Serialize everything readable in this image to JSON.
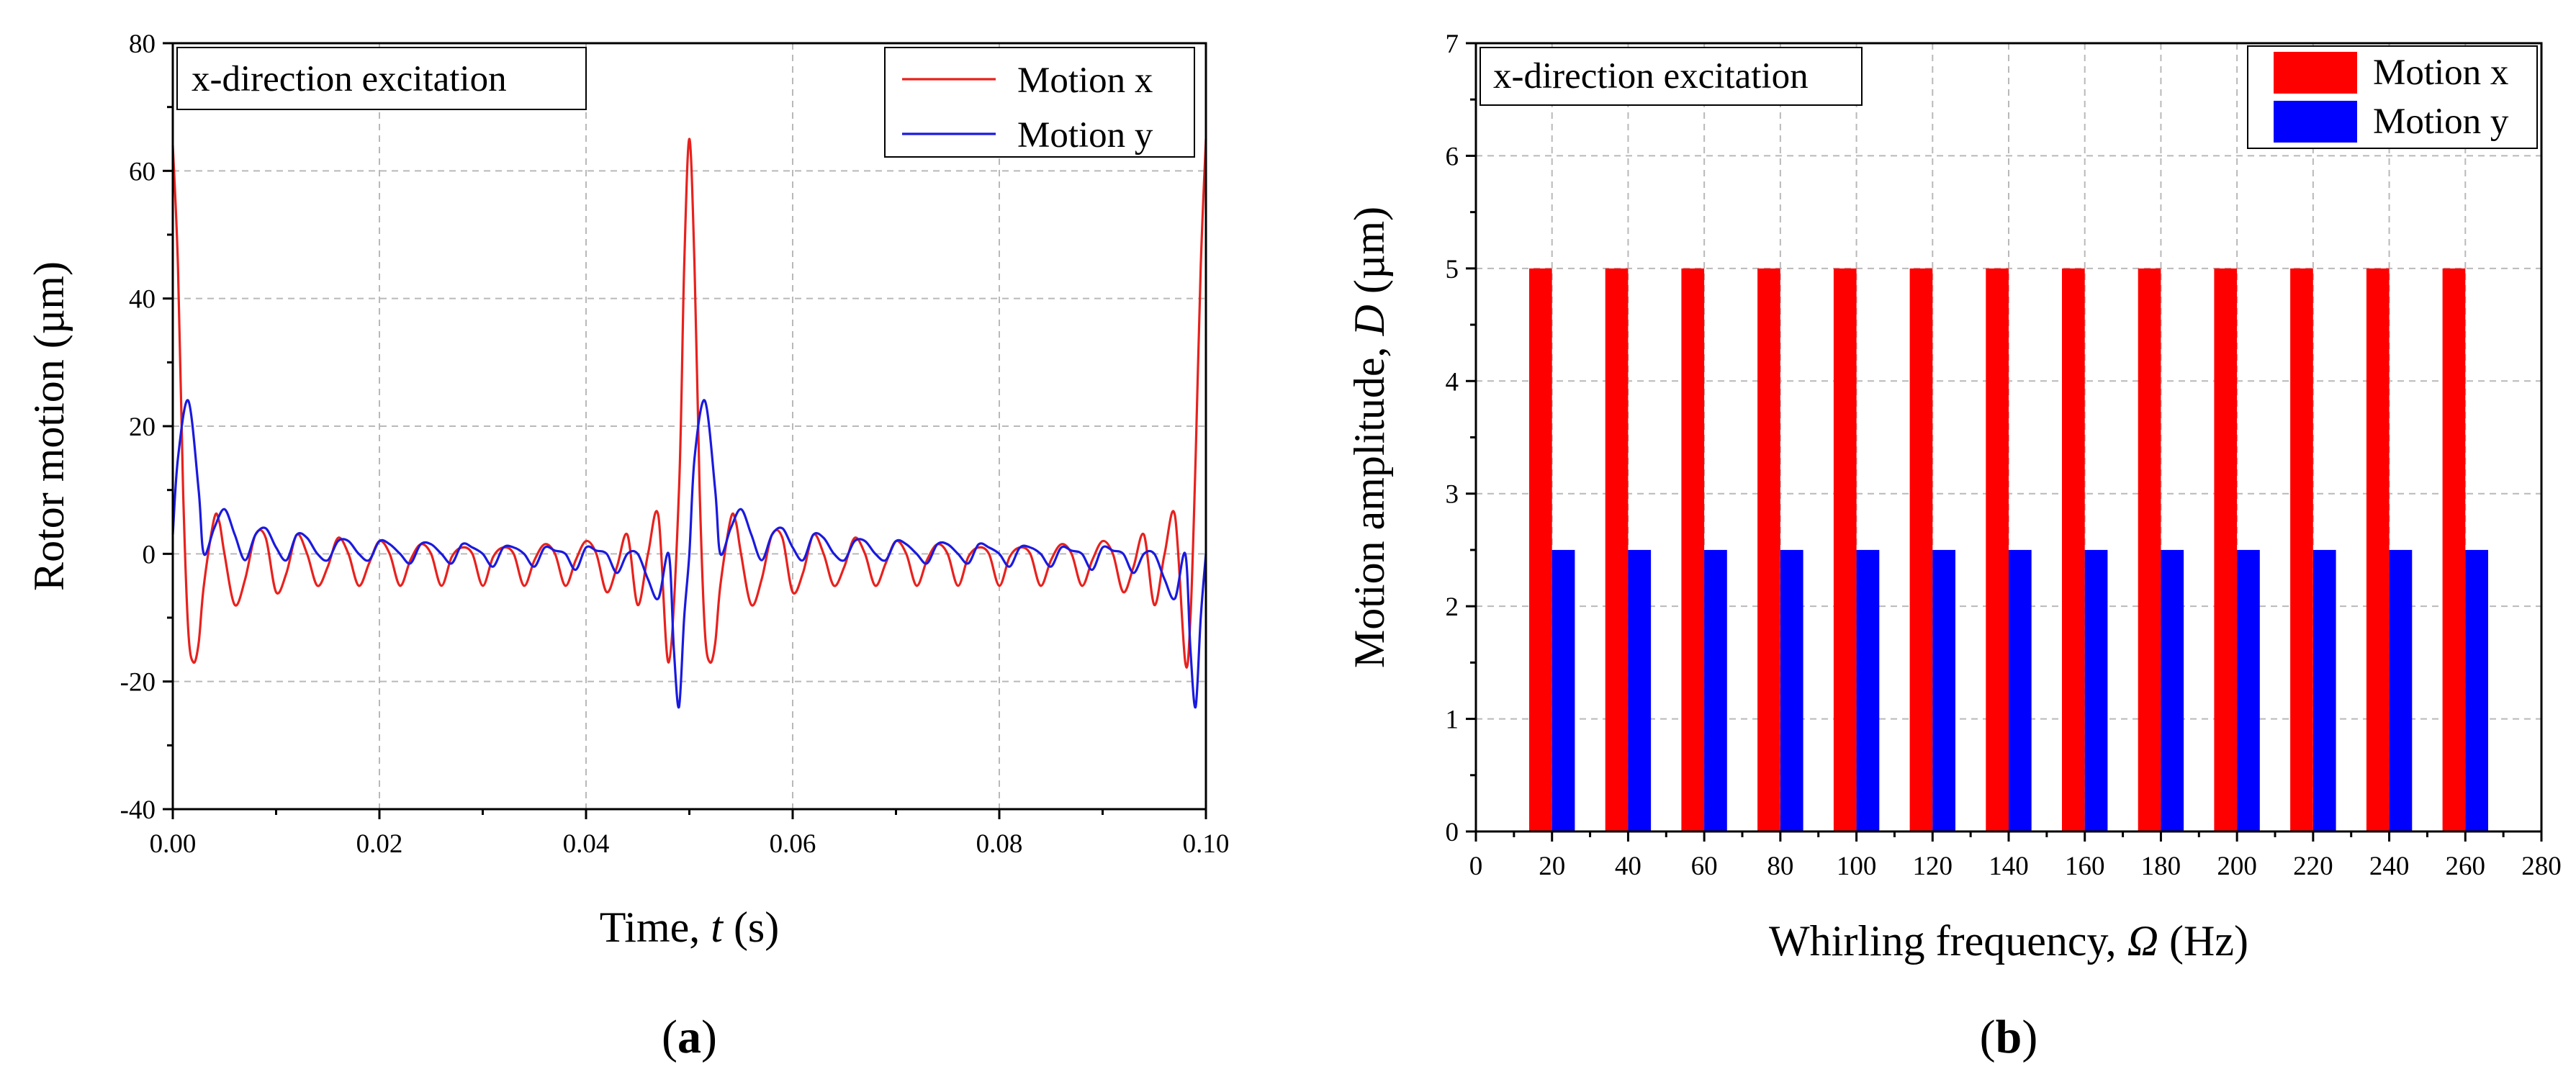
{
  "chart_data": [
    {
      "type": "line",
      "panel_label": "a",
      "annotation": "x-direction excitation",
      "xlabel": {
        "prefix": "Time, ",
        "var": "t",
        "suffix": " (s)"
      },
      "ylabel": "Rotor motion (µm)",
      "xlim": [
        0,
        0.1
      ],
      "ylim": [
        -40,
        80
      ],
      "xticks": [
        0,
        0.02,
        0.04,
        0.06,
        0.08,
        0.1
      ],
      "xtick_labels": [
        "0.00",
        "0.02",
        "0.04",
        "0.06",
        "0.08",
        "0.10"
      ],
      "yticks": [
        -40,
        -20,
        0,
        20,
        40,
        60,
        80
      ],
      "ytick_labels": [
        "-40",
        "-20",
        "0",
        "20",
        "40",
        "60",
        "80"
      ],
      "grid": true,
      "legend_position": "top-right",
      "series": [
        {
          "name": "Motion x",
          "color": "#e8211d",
          "x": [
            0,
            0.0005,
            0.001,
            0.0015,
            0.002,
            0.0025,
            0.003,
            0.004,
            0.0045,
            0.005,
            0.006,
            0.007,
            0.008,
            0.009,
            0.01,
            0.011,
            0.012,
            0.013,
            0.014,
            0.015,
            0.016,
            0.017,
            0.018,
            0.019,
            0.02,
            0.021,
            0.022,
            0.023,
            0.024,
            0.025,
            0.026,
            0.027,
            0.028,
            0.029,
            0.03,
            0.031,
            0.032,
            0.033,
            0.034,
            0.035,
            0.036,
            0.037,
            0.038,
            0.039,
            0.04,
            0.041,
            0.042,
            0.043,
            0.044,
            0.045,
            0.046,
            0.047,
            0.048,
            0.049,
            0.0495,
            0.05,
            0.0505,
            0.051,
            0.0515,
            0.052,
            0.0525,
            0.053,
            0.054,
            0.0545,
            0.055,
            0.056,
            0.057,
            0.058,
            0.059,
            0.06,
            0.061,
            0.062,
            0.063,
            0.064,
            0.065,
            0.066,
            0.067,
            0.068,
            0.069,
            0.07,
            0.071,
            0.072,
            0.073,
            0.074,
            0.075,
            0.076,
            0.077,
            0.078,
            0.079,
            0.08,
            0.081,
            0.082,
            0.083,
            0.084,
            0.085,
            0.086,
            0.087,
            0.088,
            0.089,
            0.09,
            0.091,
            0.092,
            0.093,
            0.094,
            0.095,
            0.096,
            0.097,
            0.098,
            0.0985,
            0.099,
            0.0995,
            0.1
          ],
          "y": [
            64,
            45,
            10,
            -12,
            -17,
            -14,
            -5,
            5.5,
            5,
            0,
            -8,
            -4,
            3,
            2.5,
            -6,
            -3,
            3,
            0,
            -5,
            -2,
            2.5,
            0,
            -5,
            -1.5,
            2,
            0,
            -5,
            -1,
            1.5,
            0,
            -5,
            -0.5,
            1,
            0,
            -5,
            -0.5,
            1,
            0,
            -5,
            -1,
            1.5,
            0,
            -5,
            -1,
            2,
            0,
            -6,
            -2,
            3,
            -8,
            0,
            6,
            -17,
            10,
            45,
            65,
            45,
            10,
            -12,
            -17,
            -14,
            -5,
            5.5,
            5,
            0,
            -8,
            -4,
            3,
            2.5,
            -6,
            -3,
            3,
            0,
            -5,
            -2,
            2.5,
            0,
            -5,
            -1.5,
            2,
            0,
            -5,
            -1,
            1.5,
            0,
            -5,
            -0.5,
            1,
            0,
            -5,
            -0.5,
            1,
            0,
            -5,
            -1,
            1.5,
            0,
            -5,
            -1,
            2,
            0,
            -6,
            -2,
            3,
            -8,
            0,
            6,
            -17,
            -10,
            15,
            45,
            65
          ]
        },
        {
          "name": "Motion y",
          "color": "#1a1adf",
          "x": [
            0,
            0.0005,
            0.0015,
            0.0025,
            0.003,
            0.004,
            0.005,
            0.006,
            0.007,
            0.008,
            0.009,
            0.01,
            0.011,
            0.012,
            0.013,
            0.014,
            0.015,
            0.016,
            0.017,
            0.018,
            0.019,
            0.02,
            0.021,
            0.022,
            0.023,
            0.024,
            0.025,
            0.026,
            0.027,
            0.028,
            0.029,
            0.03,
            0.031,
            0.032,
            0.033,
            0.034,
            0.035,
            0.036,
            0.037,
            0.038,
            0.039,
            0.04,
            0.041,
            0.042,
            0.043,
            0.044,
            0.045,
            0.046,
            0.047,
            0.048,
            0.0485,
            0.049,
            0.0495,
            0.05,
            0.0505,
            0.0515,
            0.0525,
            0.053,
            0.054,
            0.055,
            0.056,
            0.057,
            0.058,
            0.059,
            0.06,
            0.061,
            0.062,
            0.063,
            0.064,
            0.065,
            0.066,
            0.067,
            0.068,
            0.069,
            0.07,
            0.071,
            0.072,
            0.073,
            0.074,
            0.075,
            0.076,
            0.077,
            0.078,
            0.079,
            0.08,
            0.081,
            0.082,
            0.083,
            0.084,
            0.085,
            0.086,
            0.087,
            0.088,
            0.089,
            0.09,
            0.091,
            0.092,
            0.093,
            0.094,
            0.095,
            0.096,
            0.097,
            0.098,
            0.0985,
            0.099,
            0.0995,
            0.1
          ],
          "y": [
            3,
            15,
            24,
            10,
            0,
            4,
            7,
            3,
            -1,
            3,
            4,
            1,
            -1,
            3,
            2.5,
            0,
            -1,
            2,
            2,
            0,
            -1,
            2,
            1.5,
            0,
            -1.5,
            1.5,
            1.5,
            0,
            -1.5,
            1.5,
            1,
            0,
            -2,
            1,
            1,
            0,
            -2,
            1,
            0.5,
            0,
            -2.5,
            1,
            0.5,
            0,
            -3,
            0,
            0,
            -4,
            -7,
            0,
            -15,
            -24,
            -10,
            0,
            15,
            24,
            10,
            0,
            4,
            7,
            3,
            -1,
            3,
            4,
            1,
            -1,
            3,
            2.5,
            0,
            -1,
            2,
            2,
            0,
            -1,
            2,
            1.5,
            0,
            -1.5,
            1.5,
            1.5,
            0,
            -1.5,
            1.5,
            1,
            0,
            -2,
            1,
            1,
            0,
            -2,
            1,
            0.5,
            0,
            -2.5,
            1,
            0.5,
            0,
            -3,
            0,
            0,
            -4,
            -7,
            0,
            -15,
            -24,
            -10,
            0
          ]
        }
      ]
    },
    {
      "type": "bar",
      "panel_label": "b",
      "annotation": "x-direction excitation",
      "xlabel": {
        "prefix": "Whirling frequency, ",
        "var": "Ω",
        "suffix": " (Hz)"
      },
      "ylabel": {
        "prefix": "Motion amplitude, ",
        "var": "D",
        "suffix": " (µm)"
      },
      "xlim": [
        0,
        280
      ],
      "ylim": [
        0,
        7
      ],
      "xticks": [
        0,
        20,
        40,
        60,
        80,
        100,
        120,
        140,
        160,
        180,
        200,
        220,
        240,
        260,
        280
      ],
      "xtick_labels": [
        "0",
        "20",
        "40",
        "60",
        "80",
        "100",
        "120",
        "140",
        "160",
        "180",
        "200",
        "220",
        "240",
        "260",
        "280"
      ],
      "yticks": [
        0,
        1,
        2,
        3,
        4,
        5,
        6,
        7
      ],
      "ytick_labels": [
        "0",
        "1",
        "2",
        "3",
        "4",
        "5",
        "6",
        "7"
      ],
      "grid": true,
      "legend_position": "top-right",
      "categories": [
        20,
        40,
        60,
        80,
        100,
        120,
        140,
        160,
        180,
        200,
        220,
        240,
        260
      ],
      "series": [
        {
          "name": "Motion x",
          "color": "#ff0000",
          "values": [
            5,
            5,
            5,
            5,
            5,
            5,
            5,
            5,
            5,
            5,
            5,
            5,
            5
          ]
        },
        {
          "name": "Motion y",
          "color": "#0000ff",
          "values": [
            2.5,
            2.5,
            2.5,
            2.5,
            2.5,
            2.5,
            2.5,
            2.5,
            2.5,
            2.5,
            2.5,
            2.5,
            2.5
          ]
        }
      ]
    }
  ]
}
